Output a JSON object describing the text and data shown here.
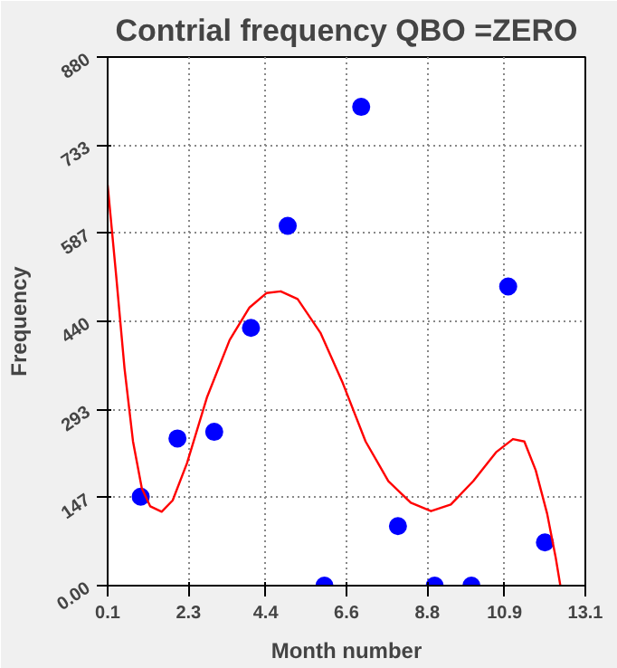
{
  "chart_data": {
    "type": "scatter",
    "title": "Contrial frequency QBO =ZERO",
    "xlabel": "Month number",
    "ylabel": "Frequency",
    "xlim": [
      0.1,
      13.1
    ],
    "xticks": [
      0.1,
      2.3,
      4.4,
      6.6,
      8.8,
      10.9,
      13.1
    ],
    "ylim": [
      0,
      880
    ],
    "yticks": [
      {
        "value": 0,
        "label": "0.00"
      },
      147,
      293,
      440,
      587,
      733,
      880
    ],
    "grid": true,
    "marker": "circle",
    "series": [
      {
        "color": "#0000ff",
        "x": [
          1,
          2,
          3,
          4,
          5,
          6,
          7,
          8,
          9,
          10,
          11,
          12
        ],
        "values": [
          148,
          245,
          256,
          429,
          599,
          0,
          797,
          99,
          0,
          0,
          498,
          72
        ]
      },
      {
        "type": "line",
        "color": "#ff0000",
        "marker": "none",
        "x": [
          0.1,
          0.33,
          0.56,
          0.79,
          1.03,
          1.26,
          1.57,
          1.87,
          2.26,
          2.8,
          3.42,
          3.96,
          4.42,
          4.81,
          5.27,
          5.89,
          6.5,
          7.12,
          7.74,
          8.35,
          8.9,
          9.44,
          10.05,
          10.67,
          11.13,
          11.44,
          11.75,
          12.06,
          12.29,
          12.42
        ],
        "values": [
          667,
          517,
          361,
          240,
          162,
          132,
          123,
          142,
          204,
          313,
          409,
          463,
          487,
          490,
          477,
          421,
          337,
          240,
          174,
          138,
          124,
          135,
          174,
          222,
          244,
          240,
          192,
          120,
          48,
          0
        ]
      }
    ]
  }
}
